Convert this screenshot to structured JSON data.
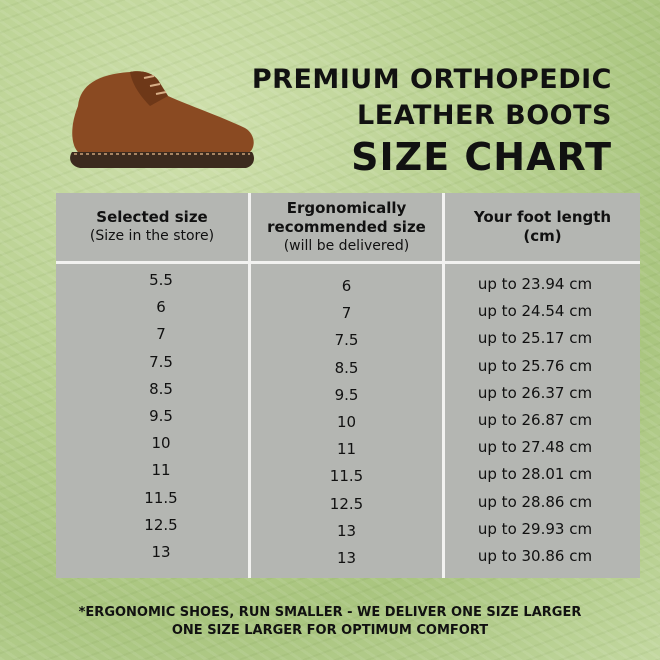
{
  "title": {
    "line1": "PREMIUM ORTHOPEDIC",
    "line2": "LEATHER BOOTS",
    "line3": "SIZE CHART"
  },
  "product_image": "brown-leather-boot",
  "table": {
    "headers": [
      {
        "bold": "Selected size",
        "sub": "(Size in the store)"
      },
      {
        "bold": "Ergonomically recommended size",
        "sub": "(will be delivered)"
      },
      {
        "bold": "Your foot length (cm)",
        "sub": ""
      }
    ],
    "selected": [
      "5.5",
      "6",
      "7",
      "7.5",
      "8.5",
      "9.5",
      "10",
      "11",
      "11.5",
      "12.5",
      "13"
    ],
    "recommended": [
      "6",
      "7",
      "7.5",
      "8.5",
      "9.5",
      "10",
      "11",
      "11.5",
      "12.5",
      "13",
      "13"
    ],
    "foot_length": [
      "up to 23.94 cm",
      "up to 24.54 cm",
      "up to 25.17 cm",
      "up to 25.76 cm",
      "up to 26.37 cm",
      "up to 26.87 cm",
      "up to 27.48 cm",
      "up to 28.01 cm",
      "up to 28.86 cm",
      "up to 29.93 cm",
      "up to 30.86 cm"
    ]
  },
  "footnote": {
    "line1": "*ERGONOMIC SHOES, RUN SMALLER - WE DELIVER ONE SIZE LARGER",
    "line2": "ONE SIZE LARGER FOR OPTIMUM COMFORT"
  },
  "colors": {
    "background": "#b9d191",
    "table": "#b4b6b2",
    "boot": "#8a4a22"
  }
}
